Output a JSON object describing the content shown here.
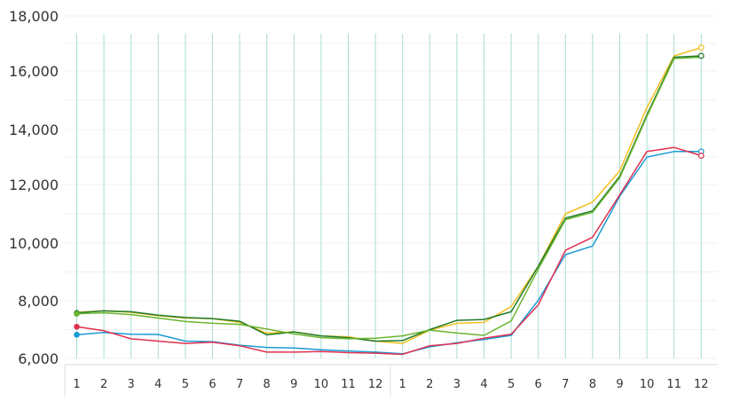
{
  "chart_data": {
    "type": "line",
    "title": "",
    "xlabel": "",
    "ylabel": "",
    "x": [
      "1",
      "2",
      "3",
      "4",
      "5",
      "6",
      "7",
      "8",
      "9",
      "10",
      "11",
      "12",
      "1",
      "2",
      "3",
      "4",
      "5",
      "6",
      "7",
      "8",
      "9",
      "10",
      "11",
      "12"
    ],
    "ylim": [
      6000,
      18000
    ],
    "yticks": [
      6000,
      8000,
      10000,
      12000,
      14000,
      16000,
      18000
    ],
    "ytick_labels": [
      "6,000",
      "8,000",
      "10,000",
      "12,000",
      "14,000",
      "16,000",
      "18,000"
    ],
    "grid": "vertical lines",
    "legend": "none",
    "series": [
      {
        "color": "#f2c01e",
        "marker_end": "open-circle",
        "values": [
          7600,
          7650,
          7600,
          7480,
          7400,
          7380,
          7250,
          6880,
          6920,
          6780,
          6750,
          6600,
          6520,
          6980,
          7220,
          7250,
          7800,
          9200,
          11000,
          11400,
          12500,
          14750,
          16550,
          16850
        ]
      },
      {
        "color": "#1f7a2a",
        "marker_start": "filled-circle",
        "marker_end": "open-circle",
        "values": [
          7580,
          7650,
          7620,
          7500,
          7420,
          7380,
          7290,
          6820,
          6920,
          6780,
          6720,
          6600,
          6620,
          7000,
          7320,
          7350,
          7620,
          9200,
          10850,
          11100,
          12300,
          14500,
          16500,
          16550
        ]
      },
      {
        "color": "#6bb52f",
        "marker_start": "filled-circle",
        "values": [
          7550,
          7580,
          7520,
          7400,
          7280,
          7220,
          7180,
          7020,
          6850,
          6720,
          6680,
          6700,
          6780,
          6980,
          6880,
          6800,
          7300,
          9100,
          10800,
          11050,
          12250,
          14450,
          16450,
          16500
        ]
      },
      {
        "color": "#1a9ad6",
        "marker_start": "filled-circle",
        "marker_end": "open-circle",
        "values": [
          6820,
          6900,
          6840,
          6830,
          6600,
          6580,
          6460,
          6380,
          6360,
          6300,
          6260,
          6220,
          6160,
          6400,
          6540,
          6660,
          6800,
          8020,
          9600,
          9900,
          11600,
          13000,
          13200,
          13200
        ]
      },
      {
        "color": "#e03050",
        "marker_start": "filled-circle",
        "marker_end": "open-circle",
        "values": [
          7100,
          6960,
          6680,
          6600,
          6520,
          6560,
          6440,
          6220,
          6220,
          6240,
          6200,
          6180,
          6140,
          6440,
          6520,
          6700,
          6840,
          7860,
          9750,
          10200,
          11650,
          13200,
          13350,
          13050
        ]
      }
    ]
  }
}
